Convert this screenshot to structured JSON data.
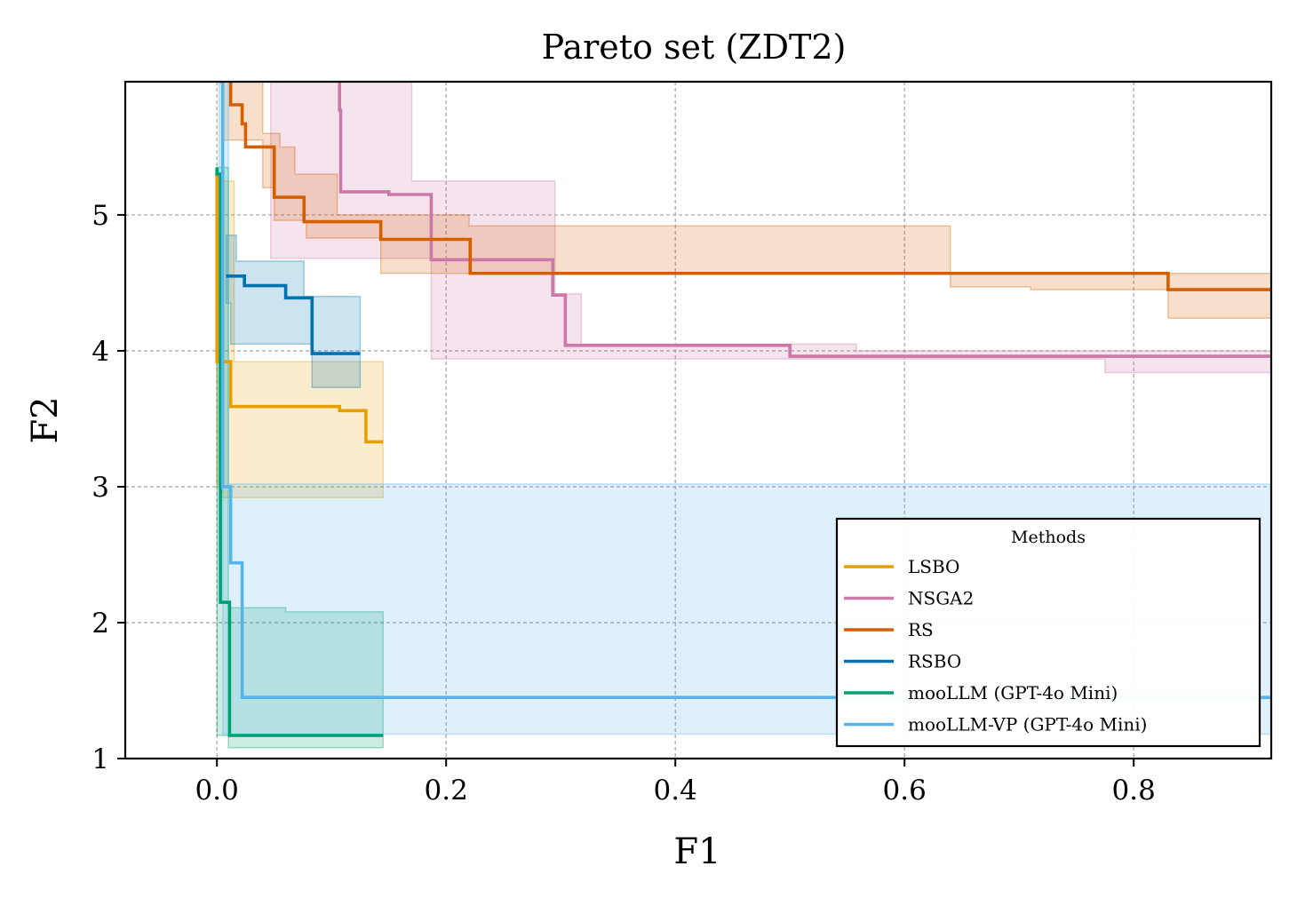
{
  "chart_data": {
    "type": "line",
    "title": "Pareto set (ZDT2)",
    "xlabel": "F1",
    "ylabel": "F2",
    "xlim": [
      -0.08,
      0.92
    ],
    "ylim": [
      1.0,
      5.98
    ],
    "xticks": [
      0.0,
      0.2,
      0.4,
      0.6,
      0.8
    ],
    "xtick_labels": [
      "0.0",
      "0.2",
      "0.4",
      "0.6",
      "0.8"
    ],
    "yticks": [
      1,
      2,
      3,
      4,
      5
    ],
    "ytick_labels": [
      "1",
      "2",
      "3",
      "4",
      "5"
    ],
    "grid": true,
    "legend": {
      "title": "Methods",
      "position": "lower-right"
    },
    "series": [
      {
        "name": "LSBO",
        "color": "#E69F00",
        "points": [
          [
            0.0,
            5.3
          ],
          [
            0.0,
            3.92
          ],
          [
            0.012,
            3.92
          ],
          [
            0.012,
            3.59
          ],
          [
            0.107,
            3.59
          ],
          [
            0.107,
            3.56
          ],
          [
            0.13,
            3.56
          ],
          [
            0.13,
            3.33
          ],
          [
            0.145,
            3.33
          ]
        ],
        "band_upper": [
          [
            0.0,
            5.25
          ],
          [
            0.015,
            5.25
          ],
          [
            0.015,
            3.92
          ],
          [
            0.145,
            3.92
          ]
        ],
        "band_lower": [
          [
            0.0,
            3.0
          ],
          [
            0.005,
            3.0
          ],
          [
            0.005,
            2.92
          ],
          [
            0.145,
            2.92
          ]
        ]
      },
      {
        "name": "NSGA2",
        "color": "#CC79A7",
        "points": [
          [
            0.107,
            5.98
          ],
          [
            0.107,
            5.77
          ],
          [
            0.108,
            5.77
          ],
          [
            0.108,
            5.17
          ],
          [
            0.15,
            5.17
          ],
          [
            0.15,
            5.15
          ],
          [
            0.187,
            5.15
          ],
          [
            0.187,
            4.67
          ],
          [
            0.293,
            4.67
          ],
          [
            0.293,
            4.41
          ],
          [
            0.304,
            4.41
          ],
          [
            0.304,
            4.04
          ],
          [
            0.5,
            4.04
          ],
          [
            0.5,
            3.96
          ],
          [
            0.92,
            3.96
          ]
        ],
        "band_upper": [
          [
            0.047,
            5.98
          ],
          [
            0.17,
            5.98
          ],
          [
            0.17,
            5.25
          ],
          [
            0.295,
            5.25
          ],
          [
            0.295,
            4.42
          ],
          [
            0.318,
            4.42
          ],
          [
            0.318,
            4.05
          ],
          [
            0.558,
            4.05
          ],
          [
            0.558,
            4.0
          ],
          [
            0.92,
            4.0
          ]
        ],
        "band_lower": [
          [
            0.047,
            4.68
          ],
          [
            0.187,
            4.68
          ],
          [
            0.187,
            3.94
          ],
          [
            0.775,
            3.94
          ],
          [
            0.775,
            3.84
          ],
          [
            0.92,
            3.84
          ]
        ]
      },
      {
        "name": "RS",
        "color": "#D55E00",
        "points": [
          [
            0.012,
            5.98
          ],
          [
            0.012,
            5.81
          ],
          [
            0.022,
            5.81
          ],
          [
            0.022,
            5.67
          ],
          [
            0.025,
            5.67
          ],
          [
            0.025,
            5.5
          ],
          [
            0.05,
            5.5
          ],
          [
            0.05,
            5.13
          ],
          [
            0.076,
            5.13
          ],
          [
            0.076,
            4.95
          ],
          [
            0.143,
            4.95
          ],
          [
            0.143,
            4.82
          ],
          [
            0.221,
            4.82
          ],
          [
            0.221,
            4.57
          ],
          [
            0.83,
            4.57
          ],
          [
            0.83,
            4.45
          ],
          [
            0.92,
            4.45
          ]
        ],
        "band_upper": [
          [
            0.005,
            5.98
          ],
          [
            0.04,
            5.98
          ],
          [
            0.04,
            5.6
          ],
          [
            0.055,
            5.6
          ],
          [
            0.055,
            5.5
          ],
          [
            0.068,
            5.5
          ],
          [
            0.068,
            5.3
          ],
          [
            0.105,
            5.3
          ],
          [
            0.105,
            5.0
          ],
          [
            0.22,
            5.0
          ],
          [
            0.22,
            4.92
          ],
          [
            0.64,
            4.92
          ],
          [
            0.64,
            4.57
          ],
          [
            0.92,
            4.57
          ]
        ],
        "band_lower": [
          [
            0.005,
            5.55
          ],
          [
            0.04,
            5.55
          ],
          [
            0.04,
            5.2
          ],
          [
            0.05,
            5.2
          ],
          [
            0.05,
            4.96
          ],
          [
            0.078,
            4.96
          ],
          [
            0.078,
            4.83
          ],
          [
            0.143,
            4.83
          ],
          [
            0.143,
            4.57
          ],
          [
            0.64,
            4.57
          ],
          [
            0.64,
            4.47
          ],
          [
            0.71,
            4.47
          ],
          [
            0.71,
            4.45
          ],
          [
            0.83,
            4.45
          ],
          [
            0.83,
            4.24
          ],
          [
            0.92,
            4.24
          ]
        ]
      },
      {
        "name": "RSBO",
        "color": "#0072B2",
        "points": [
          [
            0.008,
            4.55
          ],
          [
            0.024,
            4.55
          ],
          [
            0.024,
            4.48
          ],
          [
            0.06,
            4.48
          ],
          [
            0.06,
            4.39
          ],
          [
            0.083,
            4.39
          ],
          [
            0.083,
            3.98
          ],
          [
            0.125,
            3.98
          ]
        ],
        "band_upper": [
          [
            0.008,
            4.85
          ],
          [
            0.017,
            4.85
          ],
          [
            0.017,
            4.66
          ],
          [
            0.076,
            4.66
          ],
          [
            0.076,
            4.4
          ],
          [
            0.125,
            4.4
          ]
        ],
        "band_lower": [
          [
            0.008,
            4.35
          ],
          [
            0.012,
            4.35
          ],
          [
            0.012,
            4.05
          ],
          [
            0.083,
            4.05
          ],
          [
            0.083,
            3.73
          ],
          [
            0.125,
            3.73
          ]
        ]
      },
      {
        "name": "mooLLM (GPT-4o Mini)",
        "color": "#009E73",
        "points": [
          [
            0.0,
            5.35
          ],
          [
            0.0,
            5.3
          ],
          [
            0.003,
            5.3
          ],
          [
            0.003,
            3.0
          ],
          [
            0.003,
            2.15
          ],
          [
            0.011,
            2.15
          ],
          [
            0.011,
            1.17
          ],
          [
            0.145,
            1.17
          ]
        ],
        "band_upper": [
          [
            0.0,
            5.35
          ],
          [
            0.01,
            5.35
          ],
          [
            0.01,
            2.11
          ],
          [
            0.06,
            2.11
          ],
          [
            0.06,
            2.08
          ],
          [
            0.145,
            2.08
          ]
        ],
        "band_lower": [
          [
            0.0,
            1.17
          ],
          [
            0.01,
            1.17
          ],
          [
            0.01,
            1.08
          ],
          [
            0.145,
            1.08
          ]
        ]
      },
      {
        "name": "mooLLM-VP (GPT-4o Mini)",
        "color": "#56B4E9",
        "points": [
          [
            0.002,
            5.98
          ],
          [
            0.005,
            5.98
          ],
          [
            0.005,
            3.0
          ],
          [
            0.012,
            3.0
          ],
          [
            0.012,
            2.44
          ],
          [
            0.022,
            2.44
          ],
          [
            0.022,
            1.45
          ],
          [
            0.92,
            1.45
          ]
        ],
        "band_upper": [
          [
            0.002,
            5.98
          ],
          [
            0.01,
            5.98
          ],
          [
            0.01,
            3.02
          ],
          [
            0.92,
            3.02
          ]
        ],
        "band_lower": [
          [
            0.002,
            3.0
          ],
          [
            0.005,
            3.0
          ],
          [
            0.005,
            1.18
          ],
          [
            0.92,
            1.18
          ]
        ]
      }
    ]
  }
}
